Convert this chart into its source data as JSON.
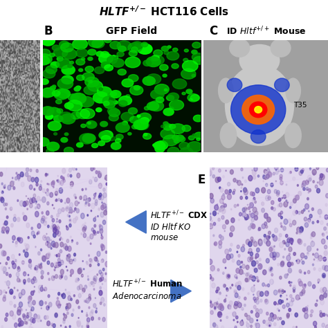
{
  "bg_color": "#ffffff",
  "title": "HLTF",
  "title_sup": "+/-",
  "title_rest": " HCT116 Cells",
  "label_B": "B",
  "label_B_text": "GFP Field",
  "label_C": "C",
  "label_C_text": "ID ",
  "label_C_italic": "Hltf",
  "label_C_sup": "+/+",
  "label_C_suffix": " Mouse",
  "label_C_extra": "T35",
  "label_E": "E",
  "arrow_color": "#4472c4",
  "arrow1_line1": "HLTF",
  "arrow1_sup": "+/-",
  "arrow1_line2": " CDX",
  "arrow1_line3": "ID Hltf KO",
  "arrow1_line4": "mouse",
  "arrow2_line1": "HLTF",
  "arrow2_sup": "+/-",
  "arrow2_line2": " Human",
  "arrow2_line3": "Adenocarcinoma",
  "panel_A_bg": "#3a3a3a",
  "panel_B_bg": "#001400",
  "panel_C_bg": "#aaaaaa",
  "panel_D_bg": "#ddd4e8",
  "panel_E_bg": "#ddd4e8",
  "figsize": [
    4.74,
    4.74
  ],
  "dpi": 100
}
